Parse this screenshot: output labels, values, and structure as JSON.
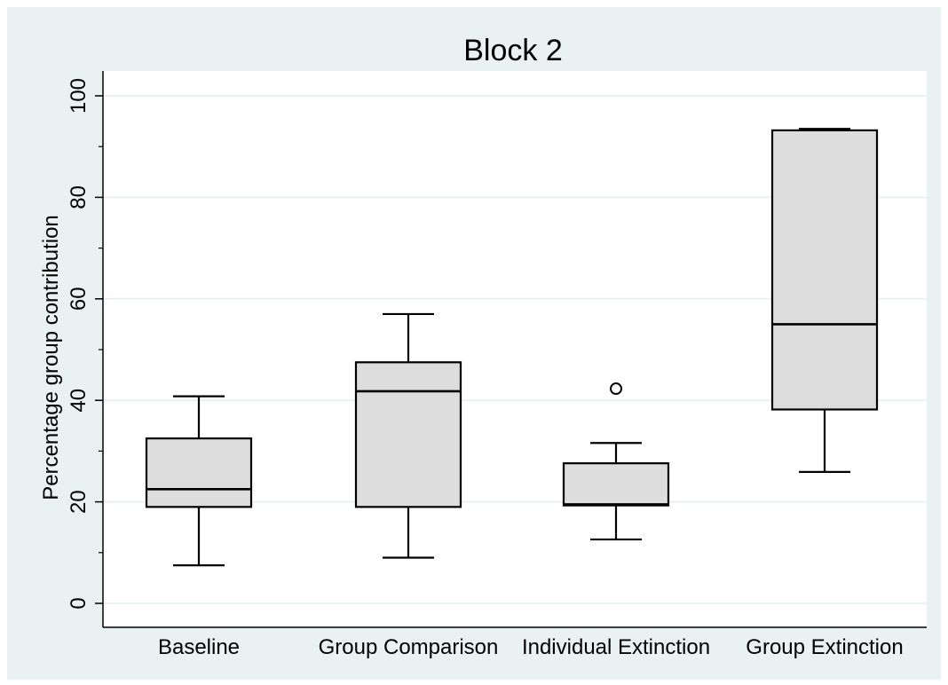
{
  "chart_data": {
    "type": "box",
    "title": "Block 2",
    "xlabel": "",
    "ylabel": "Percentage group contribution",
    "ylim": [
      0,
      100
    ],
    "yticks": [
      0,
      20,
      40,
      60,
      80,
      100
    ],
    "grid": true,
    "categories": [
      "Baseline",
      "Group Comparison",
      "Individual Extinction",
      "Group Extinction"
    ],
    "boxes": [
      {
        "category": "Baseline",
        "whisker_low": 7.5,
        "q1": 19.0,
        "median": 22.5,
        "q3": 32.5,
        "whisker_high": 40.8,
        "outliers": []
      },
      {
        "category": "Group Comparison",
        "whisker_low": 9.0,
        "q1": 19.0,
        "median": 41.8,
        "q3": 47.5,
        "whisker_high": 57.0,
        "outliers": []
      },
      {
        "category": "Individual Extinction",
        "whisker_low": 12.6,
        "q1": 19.3,
        "median": 19.5,
        "q3": 27.6,
        "whisker_high": 31.6,
        "outliers": [
          42.3
        ]
      },
      {
        "category": "Group Extinction",
        "whisker_low": 25.9,
        "q1": 38.2,
        "median": 55.0,
        "q3": 93.2,
        "whisker_high": 93.5,
        "outliers": []
      }
    ],
    "colors": {
      "box_fill": "#dddddd",
      "stroke": "#000000",
      "background": "#eaf1f3",
      "plot_area": "#ffffff",
      "grid": "#eaf1f3"
    }
  }
}
